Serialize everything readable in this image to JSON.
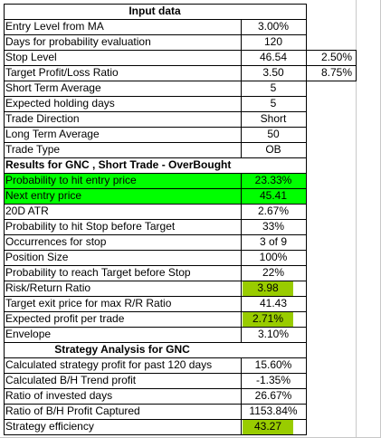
{
  "input_header": "Input data",
  "input_rows": [
    {
      "label": "Entry Level from MA",
      "value": "3.00%",
      "extra": ""
    },
    {
      "label": "Days for probability evaluation",
      "value": "120",
      "extra": ""
    },
    {
      "label": "Stop Level",
      "value": "46.54",
      "extra": "2.50%"
    },
    {
      "label": "Target Profit/Loss Ratio",
      "value": "3.50",
      "extra": "8.75%"
    },
    {
      "label": "Short Term Average",
      "value": "5",
      "extra": ""
    },
    {
      "label": "Expected holding days",
      "value": "5",
      "extra": ""
    },
    {
      "label": "Trade Direction",
      "value": "Short",
      "extra": ""
    },
    {
      "label": "Long Term Average",
      "value": "50",
      "extra": ""
    },
    {
      "label": "Trade Type",
      "value": "OB",
      "extra": ""
    }
  ],
  "results_header": "Results for GNC , Short Trade - OverBought",
  "result_rows": [
    {
      "label": "Probability to hit entry price",
      "value": "23.33%"
    },
    {
      "label": "Next entry price",
      "value": "45.41"
    },
    {
      "label": "20D ATR",
      "value": "2.67%"
    },
    {
      "label": "Probability to hit Stop before Target",
      "value": "33%"
    },
    {
      "label": "Occurrences for stop",
      "value": "3 of 9"
    },
    {
      "label": "Position Size",
      "value": "100%"
    },
    {
      "label": "Probability to reach Target before Stop",
      "value": "22%"
    },
    {
      "label": "Risk/Return Ratio",
      "value": "3.98"
    },
    {
      "label": "Target exit price for max R/R Ratio",
      "value": "41.43"
    },
    {
      "label": "Expected profit per trade",
      "value": "2.71%"
    },
    {
      "label": "Envelope",
      "value": "3.10%"
    }
  ],
  "strategy_header": "Strategy Analysis for GNC",
  "strategy_rows": [
    {
      "label": "Calculated strategy profit for past 120 days",
      "value": "15.60%"
    },
    {
      "label": "Calculated B/H Trend profit",
      "value": "-1.35%"
    },
    {
      "label": "Ratio of invested days",
      "value": "26.67%"
    },
    {
      "label": "Ratio of B/H Profit Captured",
      "value": "1153.84%"
    },
    {
      "label": "Strategy efficiency",
      "value": "43.27"
    }
  ],
  "colors": {
    "highlight_green": "#00ff00",
    "highlight_lime": "#99cc00"
  }
}
